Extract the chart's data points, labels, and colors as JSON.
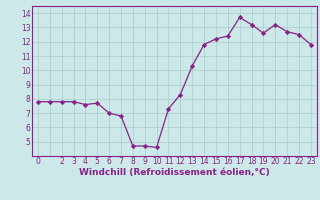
{
  "x": [
    0,
    1,
    2,
    3,
    4,
    5,
    6,
    7,
    8,
    9,
    10,
    11,
    12,
    13,
    14,
    15,
    16,
    17,
    18,
    19,
    20,
    21,
    22,
    23
  ],
  "y": [
    7.8,
    7.8,
    7.8,
    7.8,
    7.6,
    7.7,
    7.0,
    6.8,
    4.7,
    4.7,
    4.6,
    7.3,
    8.3,
    10.3,
    11.8,
    12.2,
    12.4,
    13.7,
    13.2,
    12.6,
    13.2,
    12.7,
    12.5,
    11.8
  ],
  "line_color": "#882288",
  "marker": "D",
  "markersize": 2.2,
  "linewidth": 0.9,
  "bg_color": "#cce8e8",
  "grid_color": "#aacccc",
  "xlabel": "Windchill (Refroidissement éolien,°C)",
  "xlabel_color": "#882288",
  "xlabel_fontsize": 6.5,
  "ylim": [
    4.0,
    14.5
  ],
  "xlim": [
    -0.5,
    23.5
  ],
  "yticks": [
    5,
    6,
    7,
    8,
    9,
    10,
    11,
    12,
    13,
    14
  ],
  "xtick_labels": [
    "0",
    "",
    "2",
    "3",
    "4",
    "5",
    "6",
    "7",
    "8",
    "9",
    "10",
    "11",
    "12",
    "13",
    "14",
    "15",
    "16",
    "17",
    "18",
    "19",
    "20",
    "21",
    "22",
    "23"
  ],
  "tick_fontsize": 5.5,
  "tick_color": "#882288",
  "spine_color": "#882288"
}
